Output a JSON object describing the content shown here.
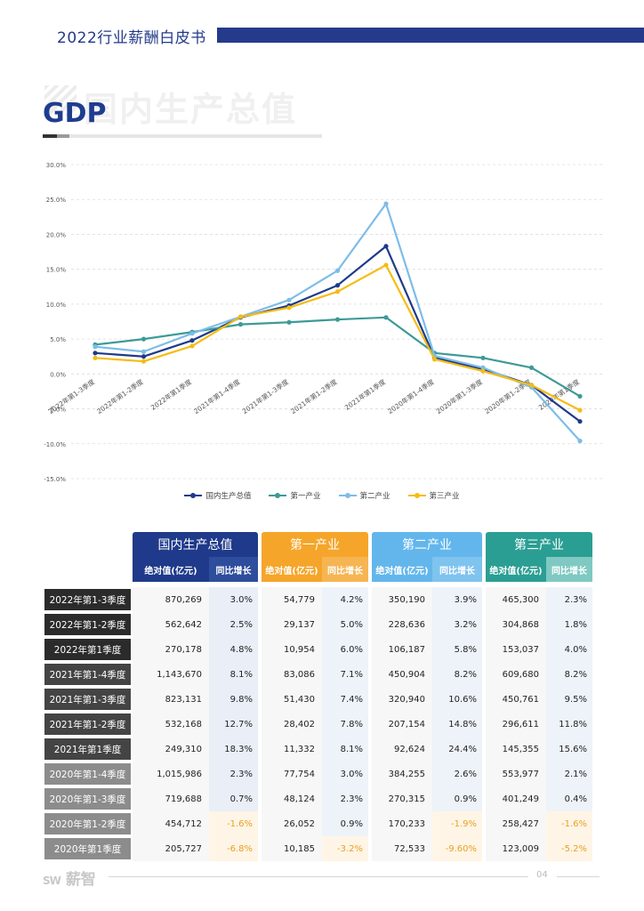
{
  "header": {
    "title": "2022行业薪酬白皮书"
  },
  "section": {
    "watermark": "国内生产总值",
    "title": "GDP"
  },
  "chart_data": {
    "type": "line",
    "categories": [
      "2022年第1-3季度",
      "2022年第1-2季度",
      "2022年第1季度",
      "2021年第1-4季度",
      "2021年第1-3季度",
      "2021年第1-2季度",
      "2021年第1季度",
      "2020年第1-4季度",
      "2020年第1-3季度",
      "2020年第1-2季度",
      "2020年第1季度"
    ],
    "series": [
      {
        "name": "国内生产总值",
        "color": "#1f3a8a",
        "values": [
          3.0,
          2.5,
          4.8,
          8.1,
          9.8,
          12.7,
          18.3,
          2.3,
          0.7,
          -1.6,
          -6.8
        ]
      },
      {
        "name": "第一产业",
        "color": "#3d9a96",
        "values": [
          4.2,
          5.0,
          6.0,
          7.1,
          7.4,
          7.8,
          8.1,
          3.0,
          2.3,
          0.9,
          -3.2
        ]
      },
      {
        "name": "第二产业",
        "color": "#7dbde8",
        "values": [
          3.9,
          3.2,
          5.8,
          8.2,
          10.6,
          14.8,
          24.4,
          2.6,
          0.9,
          -1.9,
          -9.6
        ]
      },
      {
        "name": "第三产业",
        "color": "#f5bc14",
        "values": [
          2.3,
          1.8,
          4.0,
          8.2,
          9.5,
          11.8,
          15.6,
          2.1,
          0.4,
          -1.6,
          -5.2
        ]
      }
    ],
    "ylim": [
      -15,
      30
    ],
    "yticks": [
      "30.0%",
      "25.0%",
      "20.0%",
      "15.0%",
      "10.0%",
      "5.0%",
      "0.0%",
      "-5.0%",
      "-10.0%",
      "-15.0%"
    ],
    "grid": true,
    "legend": "bottom"
  },
  "table": {
    "groups": [
      {
        "name": "国内生产总值",
        "color": "#1f3a8a",
        "sub_color": "#2e4d9c",
        "light": "#e9eef7"
      },
      {
        "name": "第一产业",
        "color": "#f5a52a",
        "sub_color": "#f6b552",
        "light": "#eef3f9"
      },
      {
        "name": "第二产业",
        "color": "#63b6ec",
        "sub_color": "#7fc3ef",
        "light": "#eef3f9"
      },
      {
        "name": "第三产业",
        "color": "#2b9e93",
        "sub_color": "#7fc9c2",
        "light": "#eef3f9"
      }
    ],
    "sub_headers": [
      "绝对值(亿元)",
      "同比增长"
    ],
    "neg_highlight": "#fff5e6",
    "rows": [
      {
        "label": "2022年第1-3季度",
        "shade": "#2b2b2b",
        "cells": [
          "870,269",
          "3.0%",
          "54,779",
          "4.2%",
          "350,190",
          "3.9%",
          "465,300",
          "2.3%"
        ]
      },
      {
        "label": "2022年第1-2季度",
        "shade": "#2b2b2b",
        "cells": [
          "562,642",
          "2.5%",
          "29,137",
          "5.0%",
          "228,636",
          "3.2%",
          "304,868",
          "1.8%"
        ]
      },
      {
        "label": "2022年第1季度",
        "shade": "#2b2b2b",
        "cells": [
          "270,178",
          "4.8%",
          "10,954",
          "6.0%",
          "106,187",
          "5.8%",
          "153,037",
          "4.0%"
        ]
      },
      {
        "label": "2021年第1-4季度",
        "shade": "#444444",
        "cells": [
          "1,143,670",
          "8.1%",
          "83,086",
          "7.1%",
          "450,904",
          "8.2%",
          "609,680",
          "8.2%"
        ]
      },
      {
        "label": "2021年第1-3季度",
        "shade": "#444444",
        "cells": [
          "823,131",
          "9.8%",
          "51,430",
          "7.4%",
          "320,940",
          "10.6%",
          "450,761",
          "9.5%"
        ]
      },
      {
        "label": "2021年第1-2季度",
        "shade": "#444444",
        "cells": [
          "532,168",
          "12.7%",
          "28,402",
          "7.8%",
          "207,154",
          "14.8%",
          "296,611",
          "11.8%"
        ]
      },
      {
        "label": "2021年第1季度",
        "shade": "#444444",
        "cells": [
          "249,310",
          "18.3%",
          "11,332",
          "8.1%",
          "92,624",
          "24.4%",
          "145,355",
          "15.6%"
        ]
      },
      {
        "label": "2020年第1-4季度",
        "shade": "#8c8c8c",
        "cells": [
          "1,015,986",
          "2.3%",
          "77,754",
          "3.0%",
          "384,255",
          "2.6%",
          "553,977",
          "2.1%"
        ]
      },
      {
        "label": "2020年第1-3季度",
        "shade": "#8c8c8c",
        "cells": [
          "719,688",
          "0.7%",
          "48,124",
          "2.3%",
          "270,315",
          "0.9%",
          "401,249",
          "0.4%"
        ]
      },
      {
        "label": "2020年第1-2季度",
        "shade": "#8c8c8c",
        "cells": [
          "454,712",
          "-1.6%",
          "26,052",
          "0.9%",
          "170,233",
          "-1.9%",
          "258,427",
          "-1.6%"
        ]
      },
      {
        "label": "2020年第1季度",
        "shade": "#8c8c8c",
        "cells": [
          "205,727",
          "-6.8%",
          "10,185",
          "-3.2%",
          "72,533",
          "-9.60%",
          "123,009",
          "-5.2%"
        ]
      }
    ]
  },
  "footer": {
    "logo": "薪智",
    "page": "04"
  }
}
